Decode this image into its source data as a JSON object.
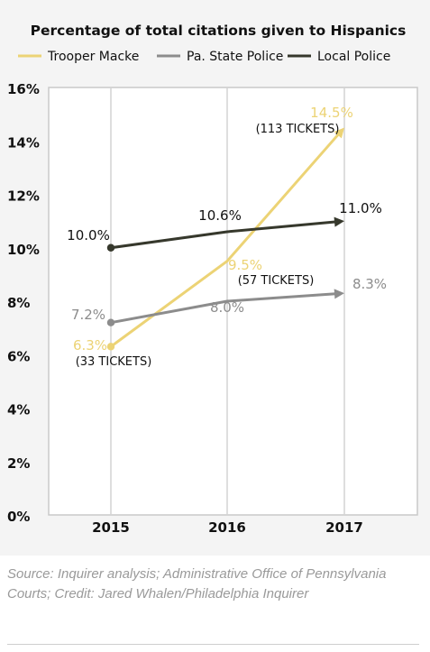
{
  "chart_data": {
    "type": "line",
    "title": "Percentage of total citations given to Hispanics",
    "x": [
      "2015",
      "2016",
      "2017"
    ],
    "ylim": [
      0,
      16
    ],
    "yticks": [
      0,
      2,
      4,
      6,
      8,
      10,
      12,
      14,
      16
    ],
    "ytick_labels": [
      "0%",
      "2%",
      "4%",
      "6%",
      "8%",
      "10%",
      "12%",
      "14%",
      "16%"
    ],
    "grid": "vertical",
    "legend_position": "top",
    "series": [
      {
        "name": "Trooper Macke",
        "color": "#ecd375",
        "values": [
          6.3,
          9.5,
          14.5
        ],
        "labels": [
          "6.3%",
          "9.5%",
          "14.5%"
        ],
        "notes": [
          "(33 TICKETS)",
          "(57 TICKETS)",
          "(113 TICKETS)"
        ]
      },
      {
        "name": "Pa. State Police",
        "color": "#8c8c8c",
        "values": [
          7.2,
          8.0,
          8.3
        ],
        "labels": [
          "7.2%",
          "8.0%",
          "8.3%"
        ],
        "notes": []
      },
      {
        "name": "Local Police",
        "color": "#36382c",
        "values": [
          10.0,
          10.6,
          11.0
        ],
        "labels": [
          "10.0%",
          "10.6%",
          "11.0%"
        ],
        "notes": []
      }
    ]
  },
  "source": "Source: Inquirer analysis; Administrative Office of Pennsylvania Courts; Credit: Jared Whalen/Philadelphia Inquirer"
}
